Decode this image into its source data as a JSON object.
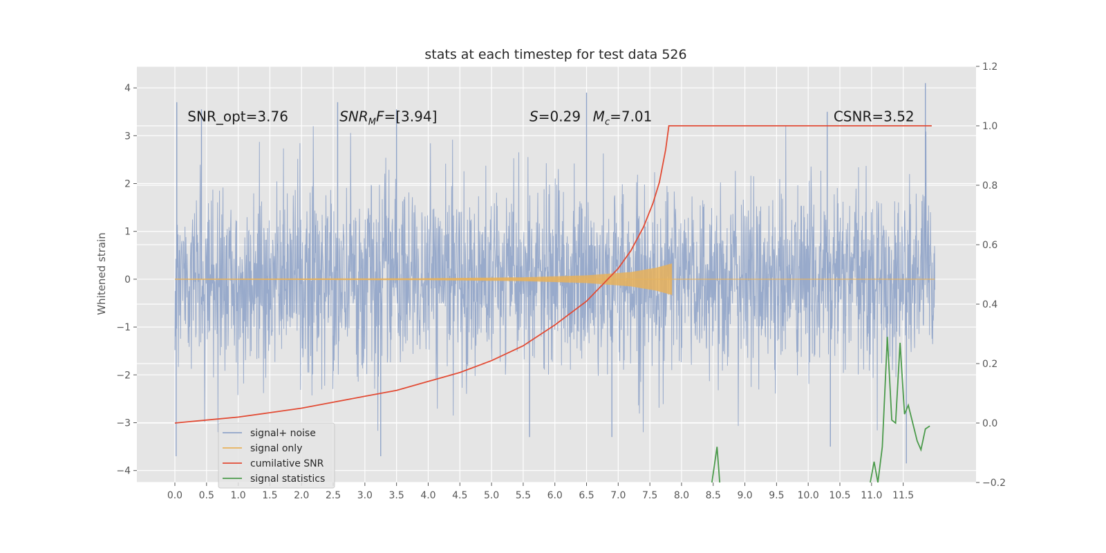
{
  "chart_data": {
    "type": "line",
    "title": "stats at each timestep for test data 526",
    "ylabel": "Whitened strain",
    "xlim": [
      -0.6,
      12.65
    ],
    "ylim": [
      -4.25,
      4.45
    ],
    "y2lim": [
      -0.2,
      1.2
    ],
    "x_ticks": [
      "0.0",
      "0.5",
      "1.0",
      "1.5",
      "2.0",
      "2.5",
      "3.0",
      "3.5",
      "4.0",
      "4.5",
      "5.0",
      "5.5",
      "6.0",
      "6.5",
      "7.0",
      "7.5",
      "8.0",
      "8.5",
      "9.0",
      "9.5",
      "10.0",
      "10.5",
      "11.0",
      "11.5"
    ],
    "y_ticks": [
      "4",
      "3",
      "2",
      "1",
      "0",
      "−1",
      "−2",
      "−3",
      "−4"
    ],
    "y_tick_values": [
      4,
      3,
      2,
      1,
      0,
      -1,
      -2,
      -3,
      -4
    ],
    "y2_ticks": [
      "1.2",
      "1.0",
      "0.8",
      "0.6",
      "0.4",
      "0.2",
      "0.0",
      "−0.2"
    ],
    "y2_tick_values": [
      1.2,
      1.0,
      0.8,
      0.6,
      0.4,
      0.2,
      0.0,
      -0.2
    ],
    "grid": true,
    "legend_position": "lower-left",
    "annotations": [
      {
        "x": 0.2,
        "y": 3.3,
        "segments": [
          {
            "text": "SNR_opt=3.76"
          }
        ]
      },
      {
        "x": 2.6,
        "y": 3.3,
        "segments": [
          {
            "text": "SNR",
            "italic": true
          },
          {
            "text": "M",
            "italic": true,
            "sub": true
          },
          {
            "text": "F",
            "italic": true
          },
          {
            "text": "=[3.94]"
          }
        ]
      },
      {
        "x": 5.6,
        "y": 3.3,
        "segments": [
          {
            "text": "S",
            "italic": true
          },
          {
            "text": "=0.29"
          }
        ]
      },
      {
        "x": 6.6,
        "y": 3.3,
        "segments": [
          {
            "text": "M",
            "italic": true
          },
          {
            "text": "c",
            "italic": true,
            "sub": true
          },
          {
            "text": "=7.01"
          }
        ]
      },
      {
        "x": 10.4,
        "y": 3.3,
        "segments": [
          {
            "text": "CSNR=3.52"
          }
        ]
      }
    ],
    "series": [
      {
        "name": "signal+ noise",
        "color": "#8fa3c8",
        "axis": "left",
        "x_range": [
          0,
          12.0
        ],
        "typical_band": [
          -1.5,
          1.9
        ],
        "spike_peaks": [
          {
            "x": 0.03,
            "y": 3.7
          },
          {
            "x": 0.42,
            "y": 3.55
          },
          {
            "x": 2.57,
            "y": 3.7
          },
          {
            "x": 3.5,
            "y": 3.55
          },
          {
            "x": 6.5,
            "y": 3.9
          },
          {
            "x": 10.3,
            "y": 3.5
          },
          {
            "x": 11.85,
            "y": 4.1
          },
          {
            "x": 0.02,
            "y": -3.7
          },
          {
            "x": 3.25,
            "y": -3.7
          },
          {
            "x": 5.6,
            "y": -3.3
          },
          {
            "x": 6.9,
            "y": -3.3
          },
          {
            "x": 10.35,
            "y": -3.5
          },
          {
            "x": 11.55,
            "y": -3.85
          }
        ]
      },
      {
        "name": "signal only",
        "color": "#e8b25a",
        "axis": "left",
        "chirp_end": 7.85,
        "amplitude": [
          {
            "x": 0.0,
            "y": 0.01
          },
          {
            "x": 4.0,
            "y": 0.02
          },
          {
            "x": 5.5,
            "y": 0.04
          },
          {
            "x": 6.5,
            "y": 0.08
          },
          {
            "x": 7.2,
            "y": 0.15
          },
          {
            "x": 7.6,
            "y": 0.24
          },
          {
            "x": 7.85,
            "y": 0.33
          }
        ]
      },
      {
        "name": "cumilative SNR",
        "color": "#e24a33",
        "axis": "right",
        "x": [
          0.0,
          0.5,
          1.0,
          1.5,
          2.0,
          2.5,
          3.0,
          3.5,
          4.0,
          4.5,
          5.0,
          5.5,
          6.0,
          6.5,
          7.0,
          7.2,
          7.4,
          7.55,
          7.65,
          7.75,
          7.8,
          7.85,
          8.5,
          9.0,
          10.0,
          11.0,
          11.95
        ],
        "values": [
          0.0,
          0.01,
          0.02,
          0.035,
          0.05,
          0.07,
          0.09,
          0.11,
          0.14,
          0.17,
          0.21,
          0.26,
          0.33,
          0.41,
          0.52,
          0.58,
          0.66,
          0.74,
          0.81,
          0.92,
          1.0,
          1.0,
          1.0,
          1.0,
          1.0,
          1.0,
          1.0
        ]
      },
      {
        "name": "signal statistics",
        "color": "#348abd",
        "display_color": "#4a9a4a",
        "axis": "right",
        "segments": [
          {
            "x": [
              8.48,
              8.56,
              8.62
            ],
            "values": [
              -0.2,
              -0.08,
              -0.25
            ]
          },
          {
            "x": [
              10.98,
              11.04,
              11.1,
              11.17,
              11.25,
              11.32,
              11.38,
              11.45,
              11.52,
              11.58,
              11.65,
              11.72,
              11.78,
              11.85,
              11.92
            ],
            "values": [
              -0.2,
              -0.13,
              -0.2,
              -0.08,
              0.29,
              0.01,
              0.0,
              0.27,
              0.03,
              0.06,
              0.0,
              -0.06,
              -0.09,
              -0.02,
              -0.01
            ]
          }
        ]
      }
    ]
  }
}
